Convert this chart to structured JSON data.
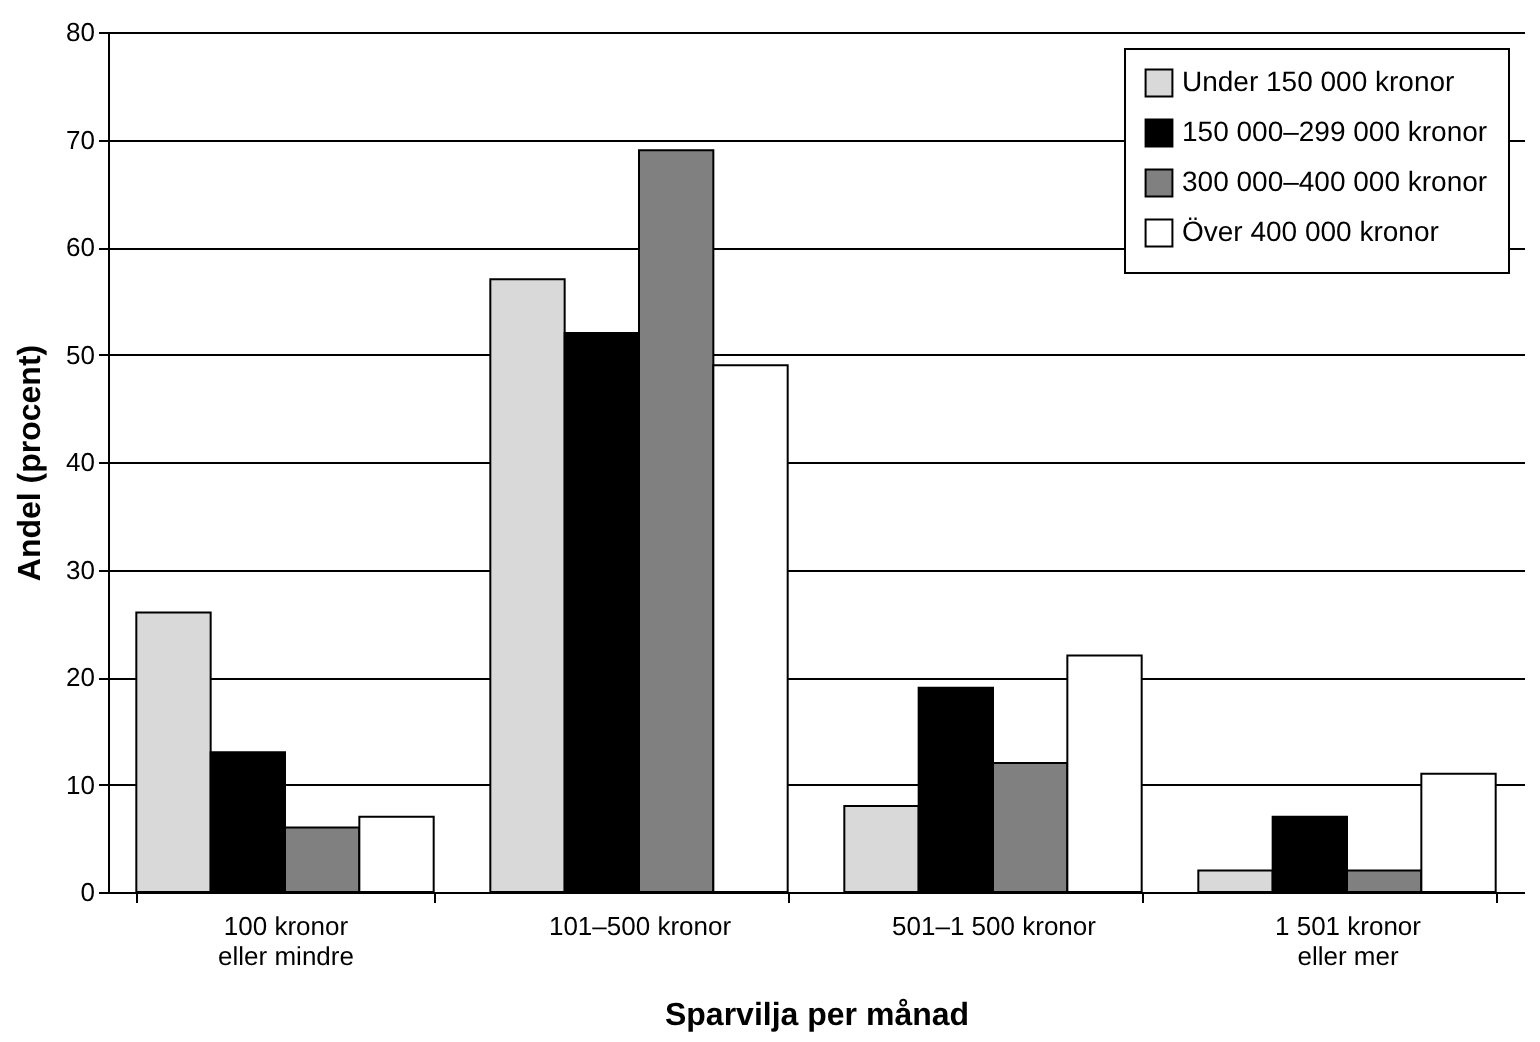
{
  "chart_data": {
    "type": "bar",
    "xlabel": "Sparvilja per månad",
    "ylabel": "Andel (procent)",
    "categories": [
      "100 kronor\neller mindre",
      "101–500 kronor",
      "501–1 500 kronor",
      "1 501 kronor\neller mer"
    ],
    "series": [
      {
        "name": "Under 150 000 kronor",
        "color": "#d9d9d9",
        "values": [
          26,
          57,
          8,
          2
        ]
      },
      {
        "name": "150 000–299 000 kronor",
        "color": "#000000",
        "values": [
          13,
          52,
          19,
          7
        ]
      },
      {
        "name": "300 000–400 000 kronor",
        "color": "#808080",
        "values": [
          6,
          69,
          12,
          2
        ]
      },
      {
        "name": "Över 400 000 kronor",
        "color": "#ffffff",
        "values": [
          7,
          49,
          22,
          11
        ]
      }
    ],
    "ylim": [
      0,
      80
    ],
    "yticks": [
      0,
      10,
      20,
      30,
      40,
      50,
      60,
      70,
      80
    ],
    "grid": "y",
    "legend": "top right"
  }
}
